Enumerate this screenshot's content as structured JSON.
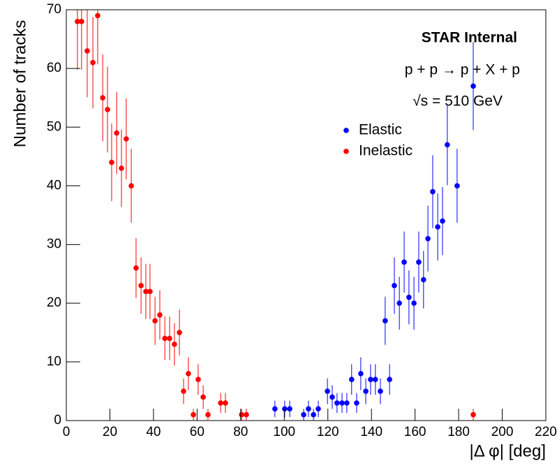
{
  "chart_data": {
    "type": "scatter",
    "x_label": "|Δ φ| [deg]",
    "y_label": "Number of tracks",
    "annotations": [
      "STAR Internal",
      "p + p → p + X + p",
      "√s = 510 GeV"
    ],
    "xlim": [
      0,
      220
    ],
    "xticks": [
      0,
      20,
      40,
      60,
      80,
      100,
      120,
      140,
      160,
      180,
      200,
      220
    ],
    "ylim": [
      0,
      70
    ],
    "yticks": [
      0,
      10,
      20,
      30,
      40,
      50,
      60,
      70
    ],
    "series": [
      {
        "name": "Elastic",
        "color": "#0000ff",
        "x": [
          95.7,
          100.2,
          102.5,
          108.9,
          111.1,
          113.4,
          115.6,
          119.8,
          122.0,
          124.2,
          126.5,
          128.7,
          130.9,
          133.2,
          135.1,
          137.4,
          139.6,
          141.8,
          144.1,
          146.3,
          148.3,
          150.5,
          152.8,
          155.0,
          157.2,
          159.5,
          161.7,
          163.9,
          165.9,
          168.1,
          170.4,
          172.6,
          174.8,
          179.3,
          186.7
        ],
        "values": [
          2,
          2,
          2,
          1,
          2,
          1,
          2,
          5,
          4,
          3,
          3,
          3,
          7,
          3,
          8,
          5,
          7,
          7,
          5,
          17,
          7,
          23,
          20,
          27,
          21,
          20,
          27,
          24,
          31,
          39,
          33,
          34,
          47,
          40,
          57
        ],
        "errors": [
          1.4,
          1.4,
          1.4,
          1,
          1.4,
          1,
          1.4,
          2.2,
          2,
          1.7,
          1.7,
          1.7,
          2.6,
          1.7,
          2.8,
          2.2,
          2.6,
          2.6,
          2.2,
          4.1,
          2.6,
          4.8,
          4.5,
          5.2,
          4.6,
          4.5,
          5.2,
          4.9,
          5.6,
          6.2,
          5.7,
          5.8,
          6.9,
          6.3,
          7.5
        ]
      },
      {
        "name": "Inelastic",
        "color": "#ff0000",
        "x": [
          5.1,
          7.0,
          9.6,
          12.2,
          14.4,
          16.7,
          18.9,
          20.8,
          23.1,
          25.3,
          27.5,
          29.8,
          32.0,
          34.3,
          36.5,
          38.4,
          40.7,
          42.9,
          45.2,
          47.4,
          49.6,
          51.9,
          53.8,
          56.0,
          58.3,
          60.5,
          62.8,
          65.0,
          70.8,
          73.0,
          80.4,
          82.6,
          186.7
        ],
        "values": [
          68,
          68,
          63,
          61,
          69,
          55,
          53,
          44,
          49,
          43,
          48,
          40,
          26,
          23,
          22,
          22,
          17,
          18,
          14,
          14,
          13,
          15,
          5,
          8,
          1,
          7,
          4,
          1,
          3,
          3,
          1,
          1,
          1
        ],
        "errors": [
          8.2,
          8.2,
          7.9,
          7.8,
          8.3,
          7.4,
          7.3,
          6.6,
          7.0,
          6.6,
          6.9,
          6.3,
          5.1,
          4.8,
          4.7,
          4.7,
          4.1,
          4.2,
          3.7,
          3.7,
          3.6,
          3.9,
          2.2,
          2.8,
          1,
          2.6,
          2,
          1,
          1.7,
          1.7,
          1,
          1,
          1
        ]
      }
    ]
  }
}
